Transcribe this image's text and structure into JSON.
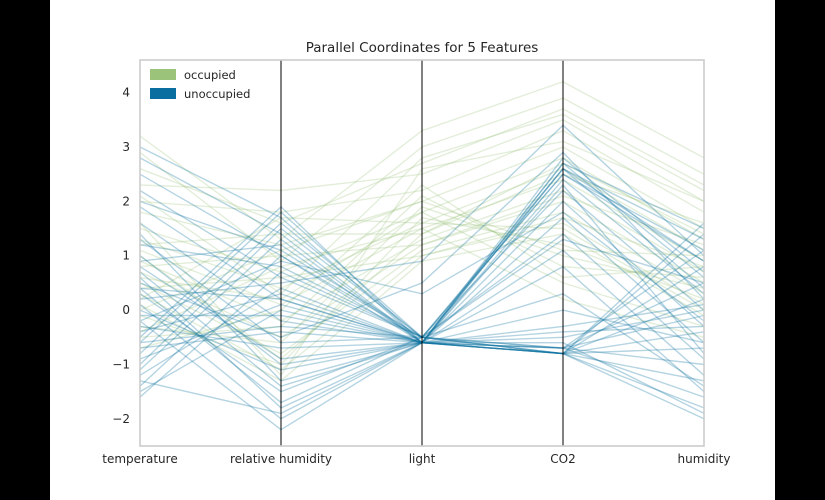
{
  "chart_data": {
    "type": "parallel_coordinates",
    "title": "Parallel Coordinates for 5 Features",
    "features": [
      "temperature",
      "relative humidity",
      "light",
      "CO2",
      "humidity"
    ],
    "ylim": [
      -2.5,
      4.6
    ],
    "yticks": [
      -2,
      -1,
      0,
      1,
      2,
      3,
      4
    ],
    "grid": false,
    "legend": {
      "placement": "top-left",
      "entries": [
        "occupied",
        "unoccupied"
      ]
    },
    "colors": {
      "occupied": "#9bc379",
      "unoccupied": "#0a6fa0",
      "axis_line": "#000000",
      "frame": "#cccccc"
    },
    "series": [
      {
        "name": "occupied",
        "alpha": 0.28,
        "lines": [
          [
            3.2,
            1.3,
            3.3,
            4.2,
            2.8
          ],
          [
            2.9,
            0.9,
            3.0,
            3.9,
            2.5
          ],
          [
            2.6,
            1.6,
            2.7,
            3.7,
            2.3
          ],
          [
            2.3,
            2.2,
            2.5,
            3.5,
            2.0
          ],
          [
            2.0,
            1.8,
            2.2,
            3.3,
            1.8
          ],
          [
            1.8,
            1.2,
            2.0,
            3.0,
            1.5
          ],
          [
            1.5,
            0.7,
            1.8,
            2.8,
            1.3
          ],
          [
            1.3,
            0.4,
            1.6,
            2.6,
            1.1
          ],
          [
            1.1,
            0.1,
            1.5,
            2.4,
            0.9
          ],
          [
            0.9,
            -0.2,
            1.3,
            2.2,
            0.7
          ],
          [
            0.7,
            -0.5,
            1.2,
            2.0,
            0.5
          ],
          [
            0.5,
            -0.8,
            1.1,
            1.8,
            0.3
          ],
          [
            0.3,
            -1.1,
            1.0,
            1.6,
            0.1
          ],
          [
            0.1,
            -1.3,
            0.9,
            1.4,
            -0.1
          ],
          [
            -0.1,
            -1.0,
            1.7,
            1.2,
            0.2
          ],
          [
            -0.3,
            -0.6,
            1.9,
            1.0,
            0.4
          ],
          [
            -0.5,
            -0.3,
            2.1,
            0.8,
            0.6
          ],
          [
            -0.7,
            0.0,
            2.3,
            0.6,
            0.8
          ],
          [
            1.2,
            1.4,
            1.4,
            2.5,
            1.6
          ],
          [
            0.8,
            1.0,
            1.2,
            2.1,
            1.2
          ],
          [
            0.4,
            0.6,
            1.0,
            1.7,
            0.8
          ],
          [
            1.6,
            -1.2,
            2.6,
            3.1,
            2.0
          ],
          [
            0.2,
            1.7,
            1.6,
            1.5,
            0.0
          ],
          [
            0.6,
            0.2,
            1.8,
            0.5,
            -0.3
          ],
          [
            1.0,
            -0.9,
            1.4,
            2.7,
            1.4
          ],
          [
            2.1,
            0.3,
            2.8,
            3.6,
            2.2
          ],
          [
            0.0,
            1.1,
            2.0,
            1.1,
            1.0
          ],
          [
            -0.4,
            0.8,
            1.5,
            0.2,
            -0.5
          ]
        ]
      },
      {
        "name": "unoccupied",
        "alpha": 0.3,
        "lines": [
          [
            3.0,
            1.7,
            -0.6,
            2.7,
            1.5
          ],
          [
            2.8,
            1.4,
            -0.6,
            2.6,
            1.3
          ],
          [
            2.5,
            1.0,
            -0.5,
            2.5,
            1.1
          ],
          [
            2.2,
            0.6,
            -0.5,
            2.6,
            0.9
          ],
          [
            1.9,
            0.2,
            -0.6,
            2.7,
            0.6
          ],
          [
            1.6,
            -0.2,
            -0.6,
            2.4,
            0.3
          ],
          [
            1.3,
            -0.6,
            -0.5,
            2.2,
            0.0
          ],
          [
            1.0,
            -1.0,
            -0.6,
            2.0,
            -0.3
          ],
          [
            0.7,
            -1.4,
            -0.6,
            1.7,
            -0.6
          ],
          [
            0.4,
            -1.7,
            -0.5,
            1.4,
            -0.9
          ],
          [
            0.1,
            -2.0,
            -0.6,
            1.1,
            -1.2
          ],
          [
            -0.2,
            -2.2,
            -0.6,
            0.8,
            -1.5
          ],
          [
            -0.5,
            1.9,
            -0.6,
            -0.8,
            -1.8
          ],
          [
            -0.8,
            1.6,
            -0.5,
            -0.8,
            -2.0
          ],
          [
            -1.1,
            1.3,
            -0.6,
            -0.7,
            -1.6
          ],
          [
            -1.4,
            1.0,
            -0.6,
            -0.8,
            -1.3
          ],
          [
            -1.6,
            0.7,
            -0.5,
            -0.7,
            -1.0
          ],
          [
            -1.2,
            0.4,
            -0.6,
            -0.8,
            -0.7
          ],
          [
            -0.9,
            0.1,
            -0.6,
            -0.8,
            -0.4
          ],
          [
            -0.6,
            -0.3,
            -0.5,
            -0.7,
            -0.1
          ],
          [
            -0.3,
            -0.7,
            -0.6,
            -0.8,
            0.2
          ],
          [
            0.0,
            -1.1,
            -0.6,
            -0.7,
            0.5
          ],
          [
            0.3,
            -1.5,
            -0.5,
            -0.8,
            0.8
          ],
          [
            0.6,
            -1.8,
            -0.6,
            -0.7,
            1.1
          ],
          [
            0.9,
            1.2,
            -0.6,
            -0.8,
            1.4
          ],
          [
            1.2,
            0.8,
            -0.5,
            -0.8,
            1.6
          ],
          [
            -0.4,
            0.3,
            -0.6,
            2.6,
            0.4
          ],
          [
            -0.7,
            -0.4,
            -0.6,
            2.8,
            0.7
          ],
          [
            -1.0,
            1.5,
            -0.5,
            2.5,
            0.9
          ],
          [
            -1.3,
            -1.9,
            -0.6,
            2.3,
            -0.8
          ],
          [
            0.2,
            0.5,
            0.9,
            3.4,
            1.0
          ],
          [
            0.5,
            -0.5,
            0.5,
            2.9,
            0.2
          ],
          [
            -0.2,
            0.9,
            0.3,
            1.8,
            -0.2
          ],
          [
            1.4,
            -1.3,
            -0.6,
            -0.6,
            -1.9
          ],
          [
            -0.6,
            1.8,
            -0.5,
            0.3,
            -1.4
          ],
          [
            0.8,
            -0.9,
            -0.6,
            0.0,
            -0.6
          ],
          [
            -1.5,
            0.0,
            -0.6,
            -0.5,
            0.0
          ],
          [
            2.0,
            1.1,
            -0.5,
            1.3,
            0.5
          ],
          [
            -0.1,
            -0.1,
            -0.6,
            -0.4,
            -0.3
          ],
          [
            0.4,
            0.2,
            -0.6,
            -0.3,
            0.1
          ]
        ]
      }
    ]
  }
}
